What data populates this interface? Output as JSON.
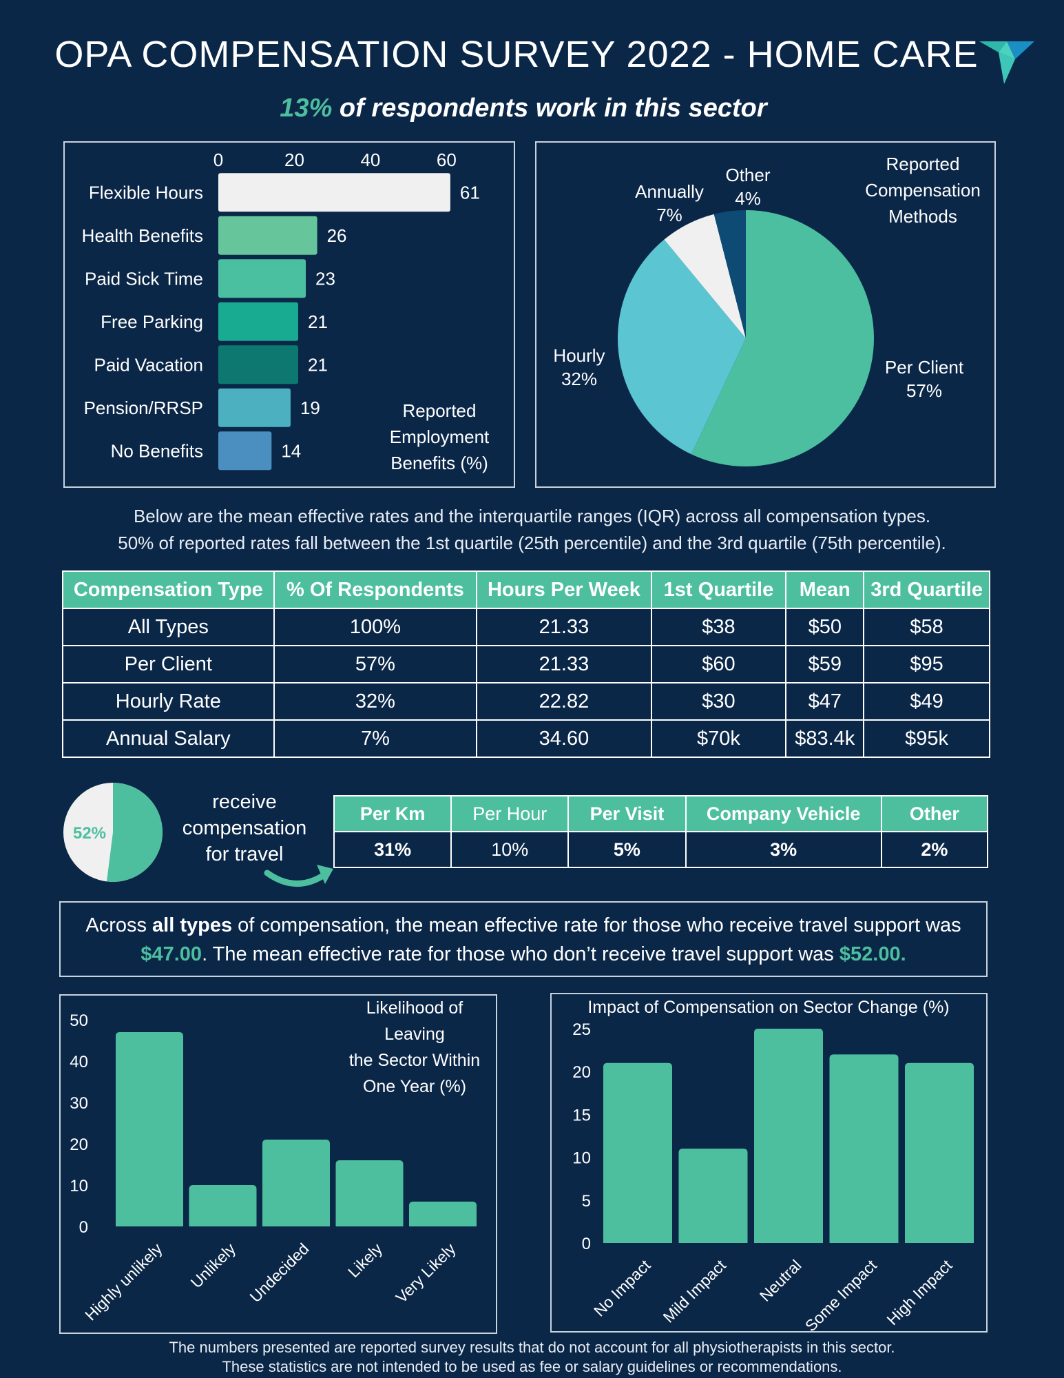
{
  "header": {
    "title": "OPA COMPENSATION SURVEY 2022 - HOME CARE",
    "subtitle_pct": "13%",
    "subtitle_rest": " of respondents work in this sector"
  },
  "benefits_chart": {
    "chart_data": {
      "type": "bar",
      "orientation": "horizontal",
      "title": "Reported Employment Benefits (%)",
      "title_lines": [
        "Reported",
        "Employment",
        "Benefits (%)"
      ],
      "categories": [
        "Flexible Hours",
        "Health Benefits",
        "Paid Sick Time",
        "Free Parking",
        "Paid Vacation",
        "Pension/RRSP",
        "No Benefits"
      ],
      "values": [
        61,
        26,
        23,
        21,
        21,
        19,
        14
      ],
      "colors": [
        "#f0f0f0",
        "#66c59b",
        "#4bc0a0",
        "#18ab92",
        "#0d786f",
        "#4cb0c0",
        "#4a8fbf"
      ],
      "xticks": [
        0,
        20,
        40,
        60
      ],
      "xlim": [
        0,
        65
      ]
    }
  },
  "methods_chart": {
    "chart_data": {
      "type": "pie",
      "title": "Reported Compensation Methods",
      "title_lines": [
        "Reported",
        "Compensation",
        "Methods"
      ],
      "slices": [
        {
          "label": "Per Client",
          "value": 57,
          "pct_text": "57%",
          "color": "#4bbf9f"
        },
        {
          "label": "Hourly",
          "value": 32,
          "pct_text": "32%",
          "color": "#5bc5d2"
        },
        {
          "label": "Annually",
          "value": 7,
          "pct_text": "7%",
          "color": "#f0f0f0"
        },
        {
          "label": "Other",
          "value": 4,
          "pct_text": "4%",
          "color": "#0d4a74"
        }
      ]
    }
  },
  "intro": {
    "line1": "Below are the mean effective rates and the interquartile ranges (IQR) across all compensation types.",
    "line2": "50% of reported rates fall between the 1st quartile (25th percentile) and the 3rd quartile (75th percentile)."
  },
  "comp_table": {
    "headers": [
      "Compensation Type",
      "% Of Respondents",
      "Hours Per Week",
      "1st Quartile",
      "Mean",
      "3rd Quartile"
    ],
    "rows": [
      [
        "All Types",
        "100%",
        "21.33",
        "$38",
        "$50",
        "$58"
      ],
      [
        "Per Client",
        "57%",
        "21.33",
        "$60",
        "$59",
        "$95"
      ],
      [
        "Hourly Rate",
        "32%",
        "22.82",
        "$30",
        "$47",
        "$49"
      ],
      [
        "Annual Salary",
        "7%",
        "34.60",
        "$70k",
        "$83.4k",
        "$95k"
      ]
    ]
  },
  "travel": {
    "pie_pct": "52%",
    "pie_value": 52,
    "label_lines": [
      "receive",
      "compensation",
      "for travel"
    ],
    "headers": [
      "Per Km",
      "Per Hour",
      "Per Visit",
      "Company Vehicle",
      "Other"
    ],
    "values": [
      "31%",
      "10%",
      "5%",
      "3%",
      "2%"
    ],
    "colors": {
      "received": "#4dbf9f",
      "not_received": "#f0f0f0"
    }
  },
  "note": {
    "p1": "Across ",
    "bold": "all types",
    "p2": " of compensation, the mean effective rate for those who receive travel support was",
    "v1": "$47.00",
    "p3": ". The mean effective rate for those who don’t receive travel support was ",
    "v2": "$52.00."
  },
  "leaving_chart": {
    "chart_data": {
      "type": "bar",
      "title": "Likelihood of Leaving the Sector Within One Year (%)",
      "title_lines": [
        "Likelihood of",
        "Leaving",
        "the Sector Within",
        "One Year (%)"
      ],
      "categories": [
        "Highly unlikely",
        "Unlikely",
        "Undecided",
        "Likely",
        "Very Likely"
      ],
      "values": [
        47,
        10,
        21,
        16,
        6
      ],
      "yticks": [
        0,
        10,
        20,
        30,
        40,
        50
      ],
      "ylim": [
        0,
        50
      ],
      "color": "#4dbf9f"
    }
  },
  "impact_chart": {
    "chart_data": {
      "type": "bar",
      "title": "Impact of Compensation on Sector Change (%)",
      "categories": [
        "No Impact",
        "Mild Impact",
        "Neutral",
        "Some Impact",
        "High Impact"
      ],
      "values": [
        21,
        11,
        25,
        22,
        21
      ],
      "yticks": [
        0,
        5,
        10,
        15,
        20,
        25
      ],
      "ylim": [
        0,
        25
      ],
      "color": "#4dbf9f"
    }
  },
  "footer": {
    "line1": "The numbers presented are reported survey results that do not account for all physiotherapists in this sector.",
    "line2": "These statistics are not intended to be used as fee or salary guidelines or recommendations."
  }
}
